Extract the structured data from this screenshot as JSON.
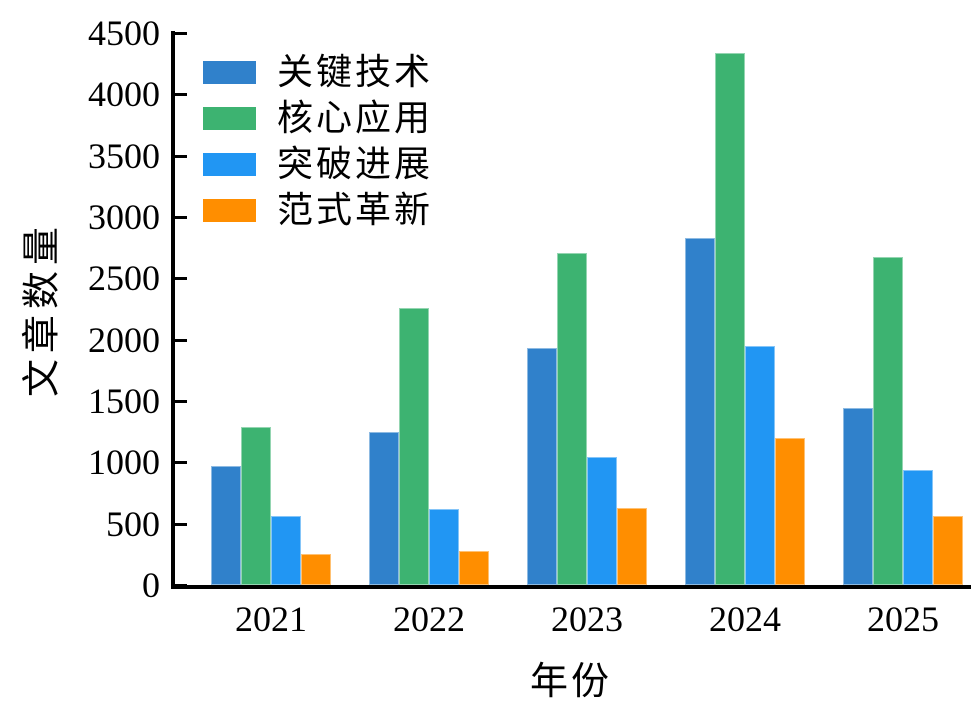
{
  "chart_data": {
    "type": "bar",
    "title": "",
    "categories": [
      "2021",
      "2022",
      "2023",
      "2024",
      "2025"
    ],
    "series": [
      {
        "name": "关键技术",
        "color": "#3081cb",
        "values": [
          970,
          1245,
          1935,
          2830,
          1440
        ]
      },
      {
        "name": "核心应用",
        "color": "#3db371",
        "values": [
          1290,
          2255,
          2710,
          4340,
          2670
        ]
      },
      {
        "name": "突破进展",
        "color": "#2196f3",
        "values": [
          560,
          620,
          1040,
          1950,
          940
        ]
      },
      {
        "name": "范式革新",
        "color": "#ff8e00",
        "values": [
          255,
          280,
          630,
          1200,
          560
        ]
      }
    ],
    "xlabel": "年份",
    "ylabel": "文章数量",
    "ylim": [
      0,
      4500
    ],
    "yticks": [
      0,
      500,
      1000,
      1500,
      2000,
      2500,
      3000,
      3500,
      4000,
      4500
    ],
    "legend_position": "upper-left",
    "grid": false,
    "axis_color": "#000000",
    "background_color": "#ffffff"
  }
}
